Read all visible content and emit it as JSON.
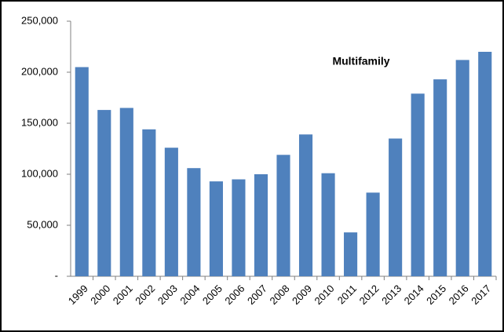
{
  "chart_data": {
    "type": "bar",
    "title": "Multifamily",
    "categories": [
      "1999",
      "2000",
      "2001",
      "2002",
      "2003",
      "2004",
      "2005",
      "2006",
      "2007",
      "2008",
      "2009",
      "2010",
      "2011",
      "2012",
      "2013",
      "2014",
      "2015",
      "2016",
      "2017"
    ],
    "values": [
      205000,
      163000,
      165000,
      144000,
      126000,
      106000,
      93000,
      95000,
      100000,
      119000,
      139000,
      101000,
      43000,
      82000,
      135000,
      179000,
      193000,
      212000,
      220000
    ],
    "color": "#4f81bd",
    "ylim": [
      0,
      250000
    ],
    "yticks": [
      {
        "value": 0,
        "label": "-"
      },
      {
        "value": 50000,
        "label": "50,000"
      },
      {
        "value": 100000,
        "label": "100,000"
      },
      {
        "value": 150000,
        "label": "150,000"
      },
      {
        "value": 200000,
        "label": "200,000"
      },
      {
        "value": 250000,
        "label": "250,000"
      }
    ],
    "grid": false
  }
}
